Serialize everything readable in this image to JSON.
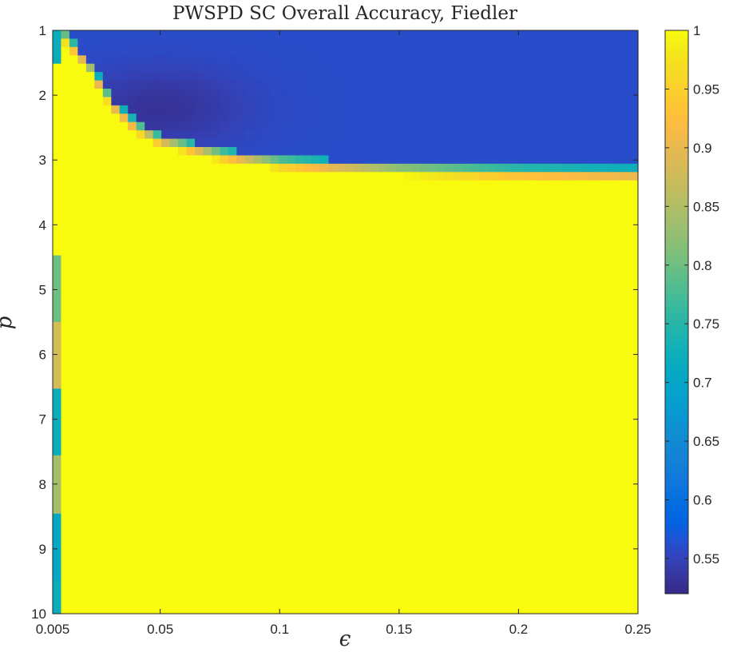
{
  "chart_data": {
    "type": "heatmap",
    "title": "PWSPD SC Overall Accuracy, Fiedler",
    "xlabel": "ϵ",
    "ylabel": "p",
    "x_range": [
      0.005,
      0.25
    ],
    "y_range": [
      1,
      10
    ],
    "x_ticks": [
      {
        "value": 0.005,
        "label": "0.005"
      },
      {
        "value": 0.05,
        "label": "0.05"
      },
      {
        "value": 0.1,
        "label": "0.1"
      },
      {
        "value": 0.15,
        "label": "0.15"
      },
      {
        "value": 0.2,
        "label": "0.2"
      },
      {
        "value": 0.25,
        "label": "0.25"
      }
    ],
    "y_ticks": [
      {
        "value": 1,
        "label": "1"
      },
      {
        "value": 2,
        "label": "2"
      },
      {
        "value": 3,
        "label": "3"
      },
      {
        "value": 4,
        "label": "4"
      },
      {
        "value": 5,
        "label": "5"
      },
      {
        "value": 6,
        "label": "6"
      },
      {
        "value": 7,
        "label": "7"
      },
      {
        "value": 8,
        "label": "8"
      },
      {
        "value": 9,
        "label": "9"
      },
      {
        "value": 10,
        "label": "10"
      }
    ],
    "y_direction": "reverse",
    "colormap": "parula",
    "colorbar": {
      "range": [
        0.52,
        1
      ],
      "ticks": [
        {
          "value": 0.55,
          "label": "0.55"
        },
        {
          "value": 0.6,
          "label": "0.6"
        },
        {
          "value": 0.65,
          "label": "0.65"
        },
        {
          "value": 0.7,
          "label": "0.7"
        },
        {
          "value": 0.75,
          "label": "0.75"
        },
        {
          "value": 0.8,
          "label": "0.8"
        },
        {
          "value": 0.85,
          "label": "0.85"
        },
        {
          "value": 0.9,
          "label": "0.9"
        },
        {
          "value": 0.95,
          "label": "0.95"
        },
        {
          "value": 1,
          "label": "1"
        }
      ]
    },
    "regions": {
      "high_accuracy_value": 1.0,
      "low_accuracy_value": 0.56,
      "min_value": 0.53,
      "transition_boundary": [
        {
          "eps": 0.01,
          "p": 1.0
        },
        {
          "eps": 0.02,
          "p": 1.45
        },
        {
          "eps": 0.03,
          "p": 2.05
        },
        {
          "eps": 0.04,
          "p": 2.4
        },
        {
          "eps": 0.05,
          "p": 2.6
        },
        {
          "eps": 0.075,
          "p": 2.82
        },
        {
          "eps": 0.1,
          "p": 2.95
        },
        {
          "eps": 0.15,
          "p": 3.05
        },
        {
          "eps": 0.2,
          "p": 3.1
        },
        {
          "eps": 0.25,
          "p": 3.12
        }
      ],
      "left_edge_strip_values": [
        0.72,
        1.0,
        1.0,
        1.0,
        0.8,
        0.88,
        0.72,
        0.84,
        0.7,
        0.72,
        0.7
      ]
    }
  }
}
